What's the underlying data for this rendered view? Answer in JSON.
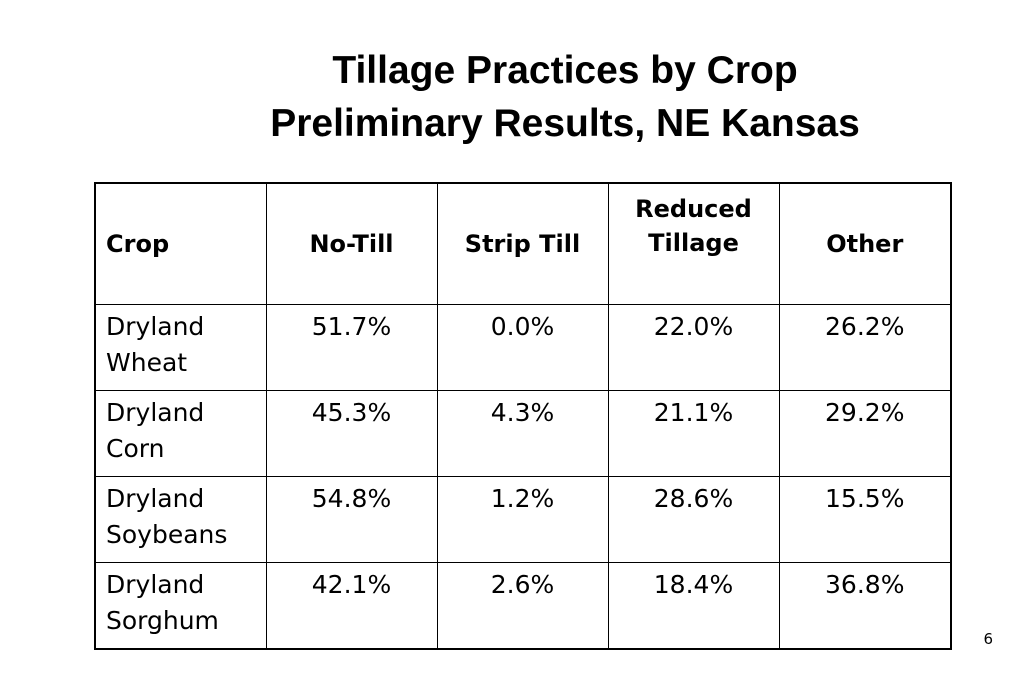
{
  "title": {
    "line1": "Tillage Practices by Crop",
    "line2": "Preliminary Results, NE Kansas"
  },
  "table": {
    "headers": {
      "crop": "Crop",
      "no_till": "No-Till",
      "strip_till": "Strip Till",
      "reduced_line1": "Reduced",
      "reduced_line2": "Tillage",
      "other": "Other"
    },
    "rows": [
      {
        "crop_line1": "Dryland",
        "crop_line2": "Wheat",
        "no_till": "51.7%",
        "strip_till": "0.0%",
        "reduced": "22.0%",
        "other": "26.2%"
      },
      {
        "crop_line1": "Dryland",
        "crop_line2": "Corn",
        "no_till": "45.3%",
        "strip_till": "4.3%",
        "reduced": "21.1%",
        "other": "29.2%"
      },
      {
        "crop_line1": "Dryland",
        "crop_line2": "Soybeans",
        "no_till": "54.8%",
        "strip_till": "1.2%",
        "reduced": "28.6%",
        "other": "15.5%"
      },
      {
        "crop_line1": "Dryland",
        "crop_line2": "Sorghum",
        "no_till": "42.1%",
        "strip_till": "2.6%",
        "reduced": "18.4%",
        "other": "36.8%"
      }
    ]
  },
  "page_number": "6"
}
